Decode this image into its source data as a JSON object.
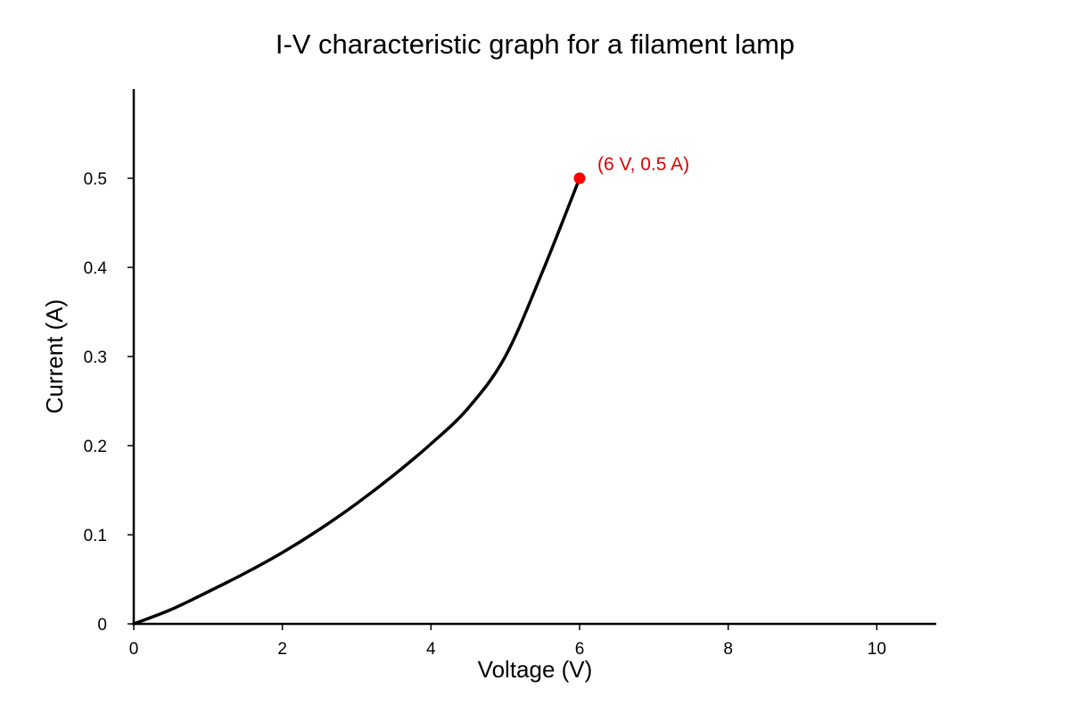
{
  "chart_data": {
    "type": "line",
    "title": "I-V characteristic graph for a filament lamp",
    "xlabel": "Voltage (V)",
    "ylabel": "Current (A)",
    "xlim": [
      0,
      10.8
    ],
    "ylim": [
      0,
      0.6
    ],
    "x_ticks": [
      0,
      2,
      4,
      6,
      8,
      10
    ],
    "x_tick_labels": [
      "0",
      "2",
      "4",
      "6",
      "8",
      "10"
    ],
    "y_ticks": [
      0,
      0.1,
      0.2,
      0.3,
      0.4,
      0.5
    ],
    "y_tick_labels": [
      "0",
      "0.1",
      "0.2",
      "0.3",
      "0.4",
      "0.5"
    ],
    "grid": false,
    "series": [
      {
        "color": "#000000",
        "x": [
          0,
          0.5,
          1,
          1.5,
          2,
          2.5,
          3,
          3.5,
          4,
          4.5,
          5,
          5.5,
          6
        ],
        "y": [
          0,
          0.016,
          0.036,
          0.057,
          0.08,
          0.106,
          0.135,
          0.167,
          0.202,
          0.242,
          0.3,
          0.395,
          0.5
        ]
      }
    ],
    "highlight_point": {
      "x": 6,
      "y": 0.5,
      "color": "#ff0000",
      "label": "(6 V, 0.5 A)",
      "label_color": "#dd0000"
    }
  }
}
